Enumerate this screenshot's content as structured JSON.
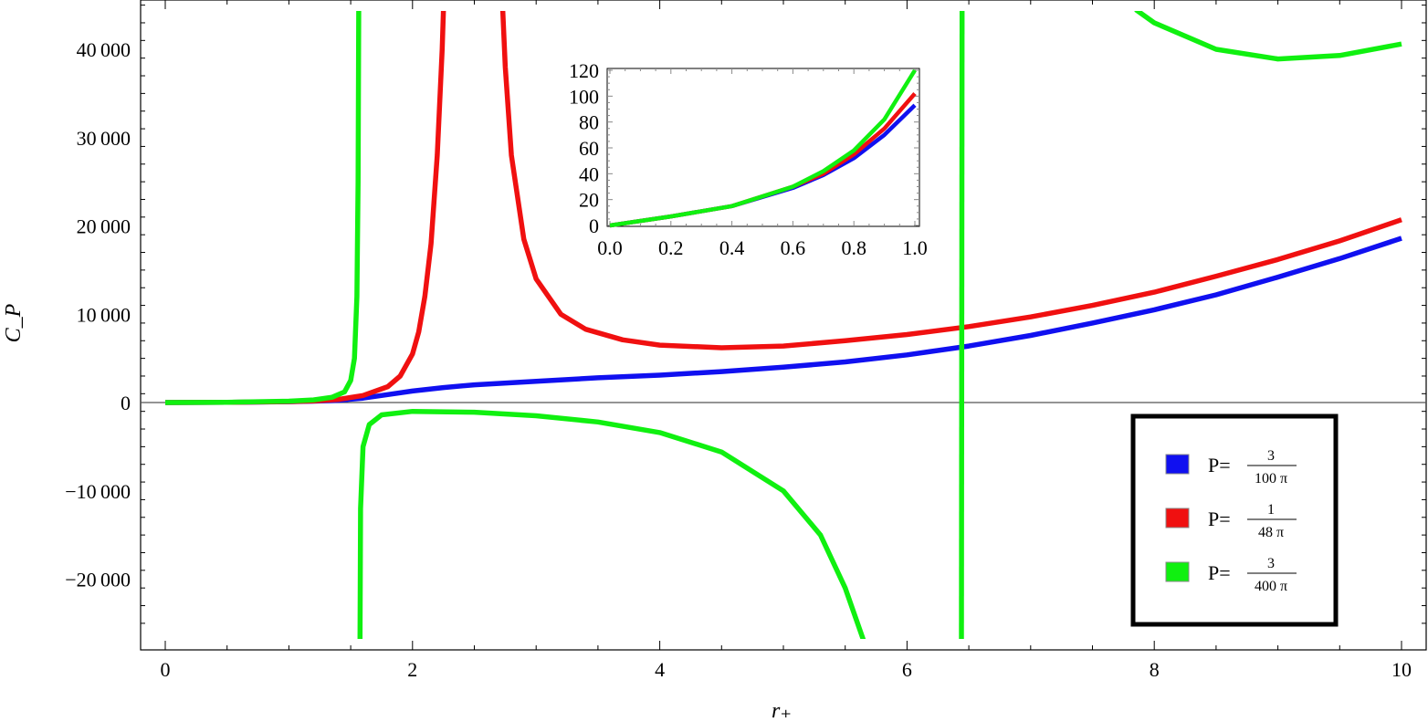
{
  "chart_data": {
    "type": "line",
    "title": "",
    "xlabel": "r₊",
    "ylabel": "C_P",
    "xlim": [
      -0.2,
      10.1
    ],
    "ylim": [
      -28000,
      45000
    ],
    "x_ticks": [
      0,
      2,
      4,
      6,
      8,
      10
    ],
    "x_tick_labels": [
      "0",
      "2",
      "4",
      "6",
      "8",
      "10"
    ],
    "y_ticks": [
      -20000,
      -10000,
      0,
      10000,
      20000,
      30000,
      40000
    ],
    "y_tick_labels": [
      "−20 000",
      "−10 000",
      "0",
      "10 000",
      "20 000",
      "30 000",
      "40 000"
    ],
    "grid": false,
    "legend_position": "bottom-right",
    "series": [
      {
        "name": "P = 3/(100 π)",
        "name_prefix": "P=",
        "name_numerator": "3",
        "name_denominator": "100 π",
        "color": "#1010f0",
        "segments": [
          [
            [
              0,
              0
            ],
            [
              0.5,
              20
            ],
            [
              1,
              90
            ],
            [
              1.2,
              150
            ],
            [
              1.4,
              250
            ],
            [
              1.6,
              500
            ],
            [
              1.8,
              900
            ],
            [
              2,
              1300
            ],
            [
              2.25,
              1700
            ],
            [
              2.5,
              2000
            ],
            [
              3,
              2400
            ],
            [
              3.5,
              2800
            ],
            [
              4,
              3100
            ],
            [
              4.5,
              3500
            ],
            [
              5,
              4000
            ],
            [
              5.5,
              4600
            ],
            [
              6,
              5400
            ],
            [
              6.5,
              6400
            ],
            [
              7,
              7600
            ],
            [
              7.5,
              9000
            ],
            [
              8,
              10500
            ],
            [
              8.5,
              12200
            ],
            [
              9,
              14200
            ],
            [
              9.5,
              16300
            ],
            [
              10,
              18600
            ]
          ]
        ]
      },
      {
        "name": "P = 1/(48 π)",
        "name_prefix": "P=",
        "name_numerator": "1",
        "name_denominator": "48 π",
        "color": "#f01010",
        "segments": [
          [
            [
              0,
              0
            ],
            [
              0.5,
              20
            ],
            [
              1,
              100
            ],
            [
              1.2,
              180
            ],
            [
              1.4,
              350
            ],
            [
              1.6,
              800
            ],
            [
              1.8,
              1800
            ],
            [
              1.9,
              3000
            ],
            [
              2,
              5500
            ],
            [
              2.05,
              8000
            ],
            [
              2.1,
              12000
            ],
            [
              2.15,
              18000
            ],
            [
              2.2,
              28000
            ],
            [
              2.24,
              40000
            ],
            [
              2.25,
              44500
            ]
          ],
          [
            [
              2.73,
              44500
            ],
            [
              2.75,
              38000
            ],
            [
              2.8,
              28000
            ],
            [
              2.9,
              18500
            ],
            [
              3,
              14000
            ],
            [
              3.2,
              10000
            ],
            [
              3.4,
              8300
            ],
            [
              3.7,
              7100
            ],
            [
              4,
              6500
            ],
            [
              4.5,
              6200
            ],
            [
              5,
              6400
            ],
            [
              5.5,
              7000
            ],
            [
              6,
              7700
            ],
            [
              6.5,
              8600
            ],
            [
              7,
              9700
            ],
            [
              7.5,
              11000
            ],
            [
              8,
              12500
            ],
            [
              8.5,
              14300
            ],
            [
              9,
              16200
            ],
            [
              9.5,
              18300
            ],
            [
              10,
              20700
            ]
          ]
        ]
      },
      {
        "name": "P = 3/(400 π)",
        "name_prefix": "P=",
        "name_numerator": "3",
        "name_denominator": "400 π",
        "color": "#10f010",
        "segments": [
          [
            [
              0,
              0
            ],
            [
              0.5,
              30
            ],
            [
              1,
              150
            ],
            [
              1.2,
              300
            ],
            [
              1.35,
              600
            ],
            [
              1.45,
              1200
            ],
            [
              1.5,
              2500
            ],
            [
              1.53,
              5000
            ],
            [
              1.55,
              12000
            ],
            [
              1.56,
              25000
            ],
            [
              1.565,
              44500
            ]
          ],
          [
            [
              1.575,
              -27000
            ],
            [
              1.58,
              -12000
            ],
            [
              1.6,
              -5000
            ],
            [
              1.65,
              -2500
            ],
            [
              1.75,
              -1400
            ],
            [
              2,
              -1000
            ],
            [
              2.5,
              -1100
            ],
            [
              3,
              -1500
            ],
            [
              3.5,
              -2200
            ],
            [
              4,
              -3400
            ],
            [
              4.5,
              -5600
            ],
            [
              5,
              -10000
            ],
            [
              5.3,
              -15000
            ],
            [
              5.5,
              -21000
            ],
            [
              5.65,
              -27000
            ]
          ],
          [
            [
              6.44,
              -27000
            ],
            [
              6.445,
              44500
            ]
          ],
          [
            [
              7.85,
              44500
            ],
            [
              8,
              43000
            ],
            [
              8.5,
              40000
            ],
            [
              9,
              38900
            ],
            [
              9.5,
              39300
            ],
            [
              10,
              40600
            ]
          ]
        ]
      }
    ],
    "inset": {
      "type": "line",
      "xlim": [
        -0.02,
        1.02
      ],
      "ylim": [
        0,
        120
      ],
      "x_ticks": [
        0.0,
        0.2,
        0.4,
        0.6,
        0.8,
        1.0
      ],
      "x_tick_labels": [
        "0.0",
        "0.2",
        "0.4",
        "0.6",
        "0.8",
        "1.0"
      ],
      "y_ticks": [
        0,
        20,
        40,
        60,
        80,
        100,
        120
      ],
      "y_tick_labels": [
        "0",
        "20",
        "40",
        "60",
        "80",
        "100",
        "120"
      ],
      "series": [
        {
          "color": "#1010f0",
          "points": [
            [
              0,
              0
            ],
            [
              0.2,
              7
            ],
            [
              0.4,
              15
            ],
            [
              0.6,
              29
            ],
            [
              0.7,
              39
            ],
            [
              0.8,
              52
            ],
            [
              0.9,
              70
            ],
            [
              1.0,
              93
            ]
          ]
        },
        {
          "color": "#f01010",
          "points": [
            [
              0,
              0
            ],
            [
              0.2,
              7
            ],
            [
              0.4,
              15
            ],
            [
              0.6,
              30
            ],
            [
              0.7,
              40
            ],
            [
              0.8,
              55
            ],
            [
              0.9,
              75
            ],
            [
              1.0,
              102
            ]
          ]
        },
        {
          "color": "#10f010",
          "points": [
            [
              0,
              0
            ],
            [
              0.2,
              7
            ],
            [
              0.4,
              15
            ],
            [
              0.6,
              30
            ],
            [
              0.7,
              42
            ],
            [
              0.8,
              58
            ],
            [
              0.9,
              82
            ],
            [
              1.0,
              120
            ]
          ]
        }
      ]
    }
  }
}
